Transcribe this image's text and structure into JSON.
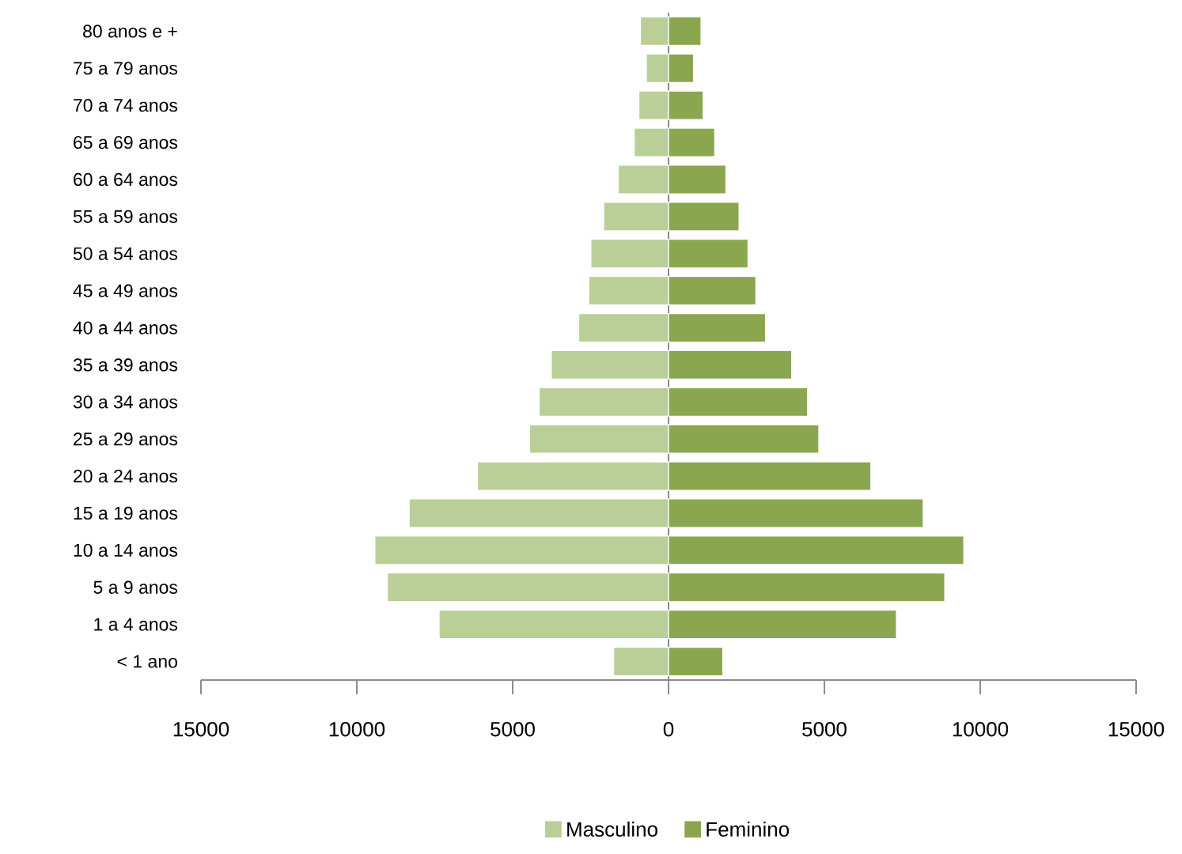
{
  "chart_data": {
    "type": "bar",
    "orientation": "horizontal",
    "categories": [
      "80 anos e +",
      "75 a 79 anos",
      "70 a 74 anos",
      "65 a 69 anos",
      "60 a 64 anos",
      "55 a 59 anos",
      "50 a 54 anos",
      "45 a 49 anos",
      "40 a 44 anos",
      "35 a 39 anos",
      "30 a 34 anos",
      "25 a 29 anos",
      "20 a 24 anos",
      "15 a 19 anos",
      "10 a 14 anos",
      "5 a 9 anos",
      "1 a 4 anos",
      "< 1 ano"
    ],
    "series": [
      {
        "name": "Masculino",
        "color": "#bacf98",
        "values": [
          -900,
          -710,
          -950,
          -1100,
          -1610,
          -2080,
          -2490,
          -2560,
          -2880,
          -3760,
          -4150,
          -4460,
          -6130,
          -8320,
          -9420,
          -9020,
          -7360,
          -1760
        ]
      },
      {
        "name": "Feminino",
        "color": "#8aa64e",
        "values": [
          1040,
          800,
          1110,
          1480,
          1840,
          2260,
          2550,
          2800,
          3110,
          3950,
          4460,
          4820,
          6490,
          8170,
          9470,
          8860,
          7310,
          1740
        ]
      }
    ],
    "xlim": [
      -15000,
      15000
    ],
    "xticks": [
      {
        "value": -15000,
        "label": "15000"
      },
      {
        "value": -10000,
        "label": "10000"
      },
      {
        "value": -5000,
        "label": "5000"
      },
      0,
      5000,
      10000,
      15000
    ],
    "stacked": true,
    "legend": "bottom"
  }
}
